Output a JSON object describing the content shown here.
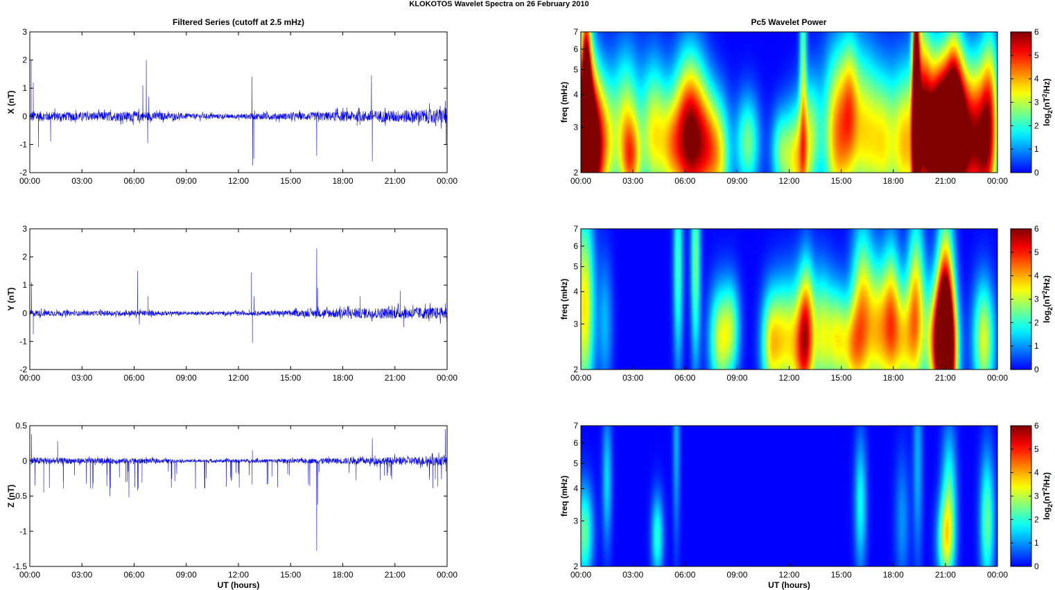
{
  "figure_title": "KLOKOTOS Wavelet Spectra on 26 February  2010",
  "left_column_title": "Filtered Series (cutoff at 2.5 mHz)",
  "right_column_title": "Pc5 Wavelet Power",
  "x_label": "UT (hours)",
  "time_ticks": [
    "00:00",
    "03:00",
    "06:00",
    "09:00",
    "12:00",
    "15:00",
    "18:00",
    "21:00",
    "00:00"
  ],
  "colormap": "jet",
  "series_color": "#0000ff",
  "chart_data": [
    {
      "type": "line",
      "name": "X",
      "ylabel": "X (nT)",
      "xlabel": "",
      "xlim": [
        0,
        24
      ],
      "ylim": [
        -2,
        3
      ],
      "yticks": [
        -2,
        -1,
        0,
        1,
        2,
        3
      ],
      "ytick_labels": [
        "-2",
        "-1",
        "0",
        "1",
        "2",
        "3"
      ],
      "noise_envelope": [
        [
          0,
          0.2
        ],
        [
          1,
          0.17
        ],
        [
          3,
          0.15
        ],
        [
          6,
          0.18
        ],
        [
          7,
          0.16
        ],
        [
          9,
          0.1
        ],
        [
          12,
          0.08
        ],
        [
          13,
          0.12
        ],
        [
          15,
          0.12
        ],
        [
          18,
          0.18
        ],
        [
          21,
          0.22
        ],
        [
          24,
          0.28
        ]
      ],
      "x": [
        0.08,
        0.2,
        0.5,
        1.2,
        6.5,
        6.7,
        6.78,
        6.85,
        12.78,
        12.82,
        12.88,
        16.5,
        19.65,
        19.7,
        23.9,
        23.95
      ],
      "y": [
        2.0,
        1.2,
        -1.1,
        -0.9,
        1.1,
        2.0,
        -0.95,
        0.7,
        1.4,
        -1.75,
        -1.5,
        -1.4,
        1.45,
        -1.6,
        0.55,
        -1.0
      ]
    },
    {
      "type": "line",
      "name": "Y",
      "ylabel": "Y (nT)",
      "xlabel": "",
      "xlim": [
        0,
        24
      ],
      "ylim": [
        -2,
        3
      ],
      "yticks": [
        -2,
        -1,
        0,
        1,
        2,
        3
      ],
      "ytick_labels": [
        "-2",
        "-1",
        "0",
        "1",
        "2",
        "3"
      ],
      "noise_envelope": [
        [
          0,
          0.12
        ],
        [
          3,
          0.08
        ],
        [
          6,
          0.1
        ],
        [
          9,
          0.06
        ],
        [
          12,
          0.07
        ],
        [
          15,
          0.1
        ],
        [
          18,
          0.18
        ],
        [
          21,
          0.2
        ],
        [
          24,
          0.22
        ]
      ],
      "x": [
        0.1,
        0.2,
        6.2,
        6.3,
        6.8,
        12.75,
        12.8,
        12.9,
        16.5,
        16.55,
        19.0,
        21.3,
        21.5,
        23.9
      ],
      "y": [
        1.1,
        -0.75,
        1.5,
        -0.4,
        0.6,
        1.45,
        -1.05,
        0.6,
        2.3,
        0.9,
        0.6,
        0.8,
        -0.5,
        0.35
      ]
    },
    {
      "type": "line",
      "name": "Z",
      "ylabel": "Z (nT)",
      "xlabel": "UT (hours)",
      "xlim": [
        0,
        24
      ],
      "ylim": [
        -1.5,
        0.5
      ],
      "yticks": [
        -1.5,
        -1,
        -0.5,
        0,
        0.5
      ],
      "ytick_labels": [
        "-1.5",
        "-1",
        "-0.5",
        "0",
        "0.5"
      ],
      "noise_envelope": [
        [
          0,
          0.05
        ],
        [
          3,
          0.04
        ],
        [
          6,
          0.04
        ],
        [
          9,
          0.02
        ],
        [
          12,
          0.025
        ],
        [
          15,
          0.03
        ],
        [
          18,
          0.045
        ],
        [
          21,
          0.055
        ],
        [
          24,
          0.07
        ]
      ],
      "x": [
        0.1,
        0.3,
        0.8,
        1.6,
        4.6,
        5.7,
        6.2,
        12.8,
        16.5,
        16.55,
        19.7,
        23.9,
        23.95
      ],
      "y": [
        0.38,
        -0.35,
        -0.45,
        0.28,
        -0.5,
        -0.52,
        -0.42,
        0.15,
        -1.28,
        -0.62,
        0.32,
        0.45,
        -0.15
      ],
      "extra_spikes": "many small negative spikes (-0.2 to -0.4) throughout"
    },
    {
      "type": "heatmap",
      "name": "X wavelet power",
      "ylabel": "freq (mHz)",
      "xlabel": "",
      "xlim": [
        0,
        24
      ],
      "ylim": [
        2,
        7
      ],
      "yscale": "log",
      "yticks": [
        2,
        3,
        4,
        5,
        6,
        7
      ],
      "ytick_labels": [
        "2",
        "3",
        "4",
        "5",
        "6",
        "7"
      ],
      "colorbar": {
        "label_base": "log",
        "label_sub": "2",
        "label_mid": "(nT",
        "label_sup": "2",
        "label_end": "/Hz)",
        "ticks": [
          "0",
          "1",
          "2",
          "3",
          "4",
          "5",
          "6"
        ],
        "range": [
          0,
          6
        ]
      },
      "blobs": [
        [
          0.2,
          2.7,
          5.4,
          0.45,
          2.5
        ],
        [
          0.6,
          2.4,
          4.2,
          0.4,
          2.2
        ],
        [
          0.3,
          4.2,
          4.5,
          0.2,
          3.0
        ],
        [
          1.3,
          2.6,
          3.5,
          0.5,
          2.0
        ],
        [
          2.6,
          3.0,
          3.0,
          0.55,
          2.2
        ],
        [
          2.9,
          2.2,
          2.5,
          0.4,
          1.5
        ],
        [
          4.2,
          2.8,
          3.3,
          0.55,
          2.1
        ],
        [
          5.2,
          2.5,
          2.4,
          0.45,
          1.7
        ],
        [
          6.0,
          2.8,
          3.6,
          0.55,
          2.2
        ],
        [
          6.6,
          2.7,
          3.5,
          0.55,
          2.2
        ],
        [
          7.3,
          2.5,
          2.6,
          0.45,
          1.8
        ],
        [
          8.0,
          2.3,
          2.8,
          0.45,
          1.8
        ],
        [
          9.6,
          2.6,
          2.5,
          0.5,
          1.6
        ],
        [
          11.5,
          2.4,
          2.2,
          0.4,
          1.5
        ],
        [
          12.5,
          2.2,
          3.5,
          0.5,
          1.8
        ],
        [
          12.8,
          5.5,
          2.3,
          0.15,
          4.0
        ],
        [
          13.3,
          2.9,
          2.0,
          0.4,
          1.8
        ],
        [
          14.8,
          2.8,
          4.2,
          0.6,
          2.4
        ],
        [
          15.5,
          3.8,
          2.0,
          0.35,
          2.0
        ],
        [
          16.3,
          2.9,
          3.0,
          0.55,
          2.3
        ],
        [
          17.4,
          2.6,
          3.0,
          0.55,
          2.1
        ],
        [
          18.7,
          2.6,
          3.6,
          0.55,
          2.2
        ],
        [
          19.3,
          4.0,
          5.8,
          0.15,
          6.0
        ],
        [
          19.7,
          3.3,
          4.0,
          0.35,
          2.8
        ],
        [
          20.6,
          2.8,
          3.7,
          0.55,
          2.2
        ],
        [
          21.0,
          2.7,
          5.8,
          0.75,
          2.2
        ],
        [
          21.5,
          3.5,
          3.2,
          0.35,
          2.5
        ],
        [
          22.0,
          2.8,
          3.5,
          0.45,
          2.0
        ],
        [
          23.0,
          2.6,
          5.2,
          0.55,
          2.3
        ],
        [
          23.6,
          3.3,
          3.0,
          0.35,
          2.5
        ]
      ]
    },
    {
      "type": "heatmap",
      "name": "Y wavelet power",
      "ylabel": "freq (mHz)",
      "xlabel": "",
      "xlim": [
        0,
        24
      ],
      "ylim": [
        2,
        7
      ],
      "yscale": "log",
      "yticks": [
        2,
        3,
        4,
        5,
        6,
        7
      ],
      "ytick_labels": [
        "2",
        "3",
        "4",
        "5",
        "6",
        "7"
      ],
      "colorbar": {
        "label_base": "log",
        "label_sub": "2",
        "label_mid": "(nT",
        "label_sup": "2",
        "label_end": "/Hz)",
        "ticks": [
          "0",
          "1",
          "2",
          "3",
          "4",
          "5",
          "6"
        ],
        "range": [
          0,
          6
        ]
      },
      "blobs": [
        [
          0.2,
          3.5,
          3.6,
          0.4,
          2.8
        ],
        [
          1.4,
          3.0,
          1.2,
          0.3,
          2.0
        ],
        [
          5.6,
          5.0,
          2.2,
          0.2,
          3.0
        ],
        [
          6.6,
          5.2,
          2.5,
          0.2,
          3.0
        ],
        [
          8.0,
          2.6,
          3.0,
          0.45,
          1.7
        ],
        [
          8.7,
          2.9,
          2.0,
          0.35,
          1.6
        ],
        [
          10.9,
          2.5,
          2.8,
          0.4,
          1.7
        ],
        [
          11.7,
          2.6,
          3.0,
          0.5,
          1.8
        ],
        [
          12.7,
          2.4,
          3.6,
          0.45,
          2.0
        ],
        [
          13.0,
          3.0,
          2.5,
          0.3,
          2.0
        ],
        [
          13.9,
          2.7,
          3.0,
          0.45,
          1.9
        ],
        [
          14.8,
          2.6,
          2.8,
          0.4,
          1.7
        ],
        [
          15.6,
          2.4,
          2.5,
          0.4,
          1.6
        ],
        [
          16.2,
          3.2,
          3.6,
          0.45,
          2.5
        ],
        [
          17.2,
          2.8,
          3.4,
          0.5,
          2.0
        ],
        [
          17.9,
          3.2,
          2.8,
          0.35,
          2.2
        ],
        [
          18.6,
          2.6,
          3.0,
          0.45,
          1.8
        ],
        [
          19.3,
          3.5,
          3.5,
          0.35,
          2.5
        ],
        [
          20.4,
          2.6,
          3.3,
          0.5,
          1.8
        ],
        [
          21.0,
          3.0,
          5.8,
          0.35,
          2.8
        ],
        [
          21.1,
          2.3,
          4.5,
          0.45,
          1.8
        ],
        [
          23.2,
          2.6,
          3.2,
          0.45,
          1.8
        ]
      ]
    },
    {
      "type": "heatmap",
      "name": "Z wavelet power",
      "ylabel": "freq (mHz)",
      "xlabel": "UT (hours)",
      "xlim": [
        0,
        24
      ],
      "ylim": [
        2,
        7
      ],
      "yscale": "log",
      "yticks": [
        2,
        3,
        4,
        5,
        6,
        7
      ],
      "ytick_labels": [
        "2",
        "3",
        "4",
        "5",
        "6",
        "7"
      ],
      "colorbar": {
        "label_base": "log",
        "label_sub": "2",
        "label_mid": "(nT",
        "label_sup": "2",
        "label_end": "/Hz)",
        "ticks": [
          "0",
          "1",
          "2",
          "3",
          "4",
          "5",
          "6"
        ],
        "range": [
          0,
          6
        ]
      },
      "blobs": [
        [
          0.2,
          2.7,
          2.4,
          0.35,
          1.6
        ],
        [
          1.5,
          4.3,
          1.5,
          0.2,
          2.0
        ],
        [
          4.4,
          2.6,
          2.0,
          0.25,
          1.5
        ],
        [
          5.5,
          6.0,
          1.2,
          0.15,
          3.0
        ],
        [
          16.1,
          3.5,
          1.8,
          0.25,
          2.0
        ],
        [
          18.5,
          3.0,
          1.0,
          0.3,
          2.0
        ],
        [
          19.4,
          5.0,
          1.2,
          0.2,
          3.0
        ],
        [
          21.0,
          2.5,
          2.6,
          0.35,
          1.5
        ],
        [
          21.2,
          3.8,
          2.0,
          0.3,
          2.0
        ],
        [
          23.4,
          3.0,
          2.4,
          0.3,
          2.0
        ]
      ]
    }
  ]
}
